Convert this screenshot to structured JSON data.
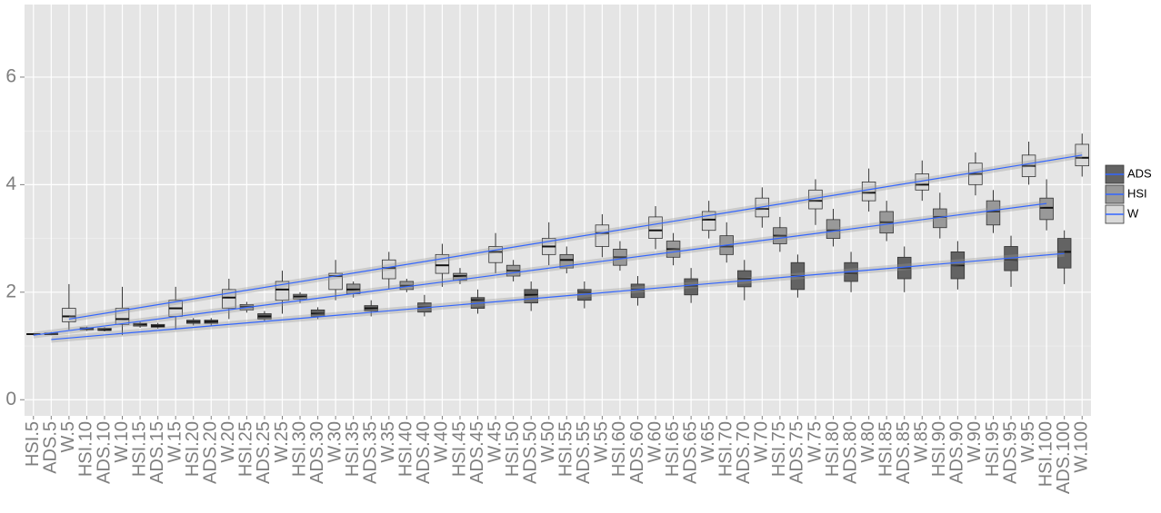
{
  "chart_data": {
    "type": "box",
    "categories": [
      "HSI.5",
      "ADS.5",
      "W.5",
      "HSI.10",
      "ADS.10",
      "W.10",
      "HSI.15",
      "ADS.15",
      "W.15",
      "HSI.20",
      "ADS.20",
      "W.20",
      "HSI.25",
      "ADS.25",
      "W.25",
      "HSI.30",
      "ADS.30",
      "W.30",
      "HSI.35",
      "ADS.35",
      "W.35",
      "HSI.40",
      "ADS.40",
      "W.40",
      "HSI.45",
      "ADS.45",
      "W.45",
      "HSI.50",
      "ADS.50",
      "W.50",
      "HSI.55",
      "ADS.55",
      "W.55",
      "HSI.60",
      "ADS.60",
      "W.60",
      "HSI.65",
      "ADS.65",
      "W.65",
      "HSI.70",
      "ADS.70",
      "W.70",
      "HSI.75",
      "ADS.75",
      "W.75",
      "HSI.80",
      "ADS.80",
      "W.80",
      "HSI.85",
      "ADS.85",
      "W.85",
      "HSI.90",
      "ADS.90",
      "W.90",
      "HSI.95",
      "ADS.95",
      "W.95",
      "HSI.100",
      "ADS.100",
      "W.100"
    ],
    "ylim": [
      -0.3,
      7.35
    ],
    "yticks": [
      0,
      2,
      4,
      6
    ],
    "grid": true,
    "fit_color": "#3366ff",
    "legend_position": "right",
    "series": [
      {
        "name": "ADS",
        "color": "#636363",
        "fit": [
          1.12,
          2.72
        ],
        "fit_se": 0.06,
        "boxes": [
          null,
          [
            1.2,
            1.21,
            1.22,
            1.24,
            1.26
          ],
          null,
          null,
          [
            1.27,
            1.29,
            1.3,
            1.33,
            1.35
          ],
          null,
          null,
          [
            1.32,
            1.35,
            1.37,
            1.4,
            1.43
          ],
          null,
          null,
          [
            1.38,
            1.42,
            1.45,
            1.48,
            1.52
          ],
          null,
          null,
          [
            1.45,
            1.5,
            1.55,
            1.6,
            1.65
          ],
          null,
          null,
          [
            1.5,
            1.55,
            1.6,
            1.67,
            1.72
          ],
          null,
          null,
          [
            1.55,
            1.65,
            1.7,
            1.75,
            1.85
          ],
          null,
          null,
          [
            1.55,
            1.63,
            1.72,
            1.8,
            1.95
          ],
          null,
          null,
          [
            1.6,
            1.7,
            1.85,
            1.9,
            2.05
          ],
          null,
          null,
          [
            1.65,
            1.8,
            1.95,
            2.05,
            2.2
          ],
          null,
          null,
          [
            1.7,
            1.85,
            2.0,
            2.05,
            2.2
          ],
          null,
          null,
          [
            1.75,
            1.9,
            2.05,
            2.15,
            2.3
          ],
          null,
          null,
          [
            1.8,
            1.95,
            2.12,
            2.25,
            2.45
          ],
          null,
          null,
          [
            1.85,
            2.1,
            2.25,
            2.4,
            2.6
          ],
          null,
          null,
          [
            1.9,
            2.05,
            2.3,
            2.55,
            2.7
          ],
          null,
          null,
          [
            2.0,
            2.2,
            2.35,
            2.55,
            2.75
          ],
          null,
          null,
          [
            2.0,
            2.25,
            2.45,
            2.65,
            2.85
          ],
          null,
          null,
          [
            2.05,
            2.25,
            2.5,
            2.75,
            2.95
          ],
          null,
          null,
          [
            2.1,
            2.4,
            2.6,
            2.85,
            3.05
          ],
          null,
          null,
          [
            2.15,
            2.45,
            2.75,
            3.0,
            3.15
          ],
          null
        ]
      },
      {
        "name": "HSI",
        "color": "#999999",
        "fit": [
          1.2,
          3.65
        ],
        "fit_se": 0.06,
        "boxes": [
          [
            1.2,
            1.21,
            1.22,
            1.23,
            1.24
          ],
          null,
          null,
          [
            1.28,
            1.3,
            1.32,
            1.34,
            1.36
          ],
          null,
          null,
          [
            1.34,
            1.37,
            1.4,
            1.42,
            1.45
          ],
          null,
          null,
          [
            1.38,
            1.42,
            1.45,
            1.48,
            1.52
          ],
          null,
          null,
          [
            1.62,
            1.67,
            1.73,
            1.77,
            1.82
          ],
          null,
          null,
          [
            1.8,
            1.87,
            1.92,
            1.96,
            2.0
          ],
          null,
          null,
          [
            1.9,
            1.97,
            2.05,
            2.15,
            2.2
          ],
          null,
          null,
          [
            2.0,
            2.05,
            2.12,
            2.2,
            2.25
          ],
          null,
          null,
          [
            2.15,
            2.22,
            2.3,
            2.35,
            2.45
          ],
          null,
          null,
          [
            2.2,
            2.3,
            2.4,
            2.5,
            2.6
          ],
          null,
          null,
          [
            2.35,
            2.45,
            2.6,
            2.7,
            2.85
          ],
          null,
          null,
          [
            2.4,
            2.5,
            2.65,
            2.8,
            2.95
          ],
          null,
          null,
          [
            2.5,
            2.65,
            2.8,
            2.95,
            3.1
          ],
          null,
          null,
          [
            2.55,
            2.7,
            2.85,
            3.05,
            3.3
          ],
          null,
          null,
          [
            2.75,
            2.9,
            3.05,
            3.2,
            3.4
          ],
          null,
          null,
          [
            2.85,
            3.0,
            3.15,
            3.35,
            3.55
          ],
          null,
          null,
          [
            2.95,
            3.1,
            3.3,
            3.5,
            3.7
          ],
          null,
          null,
          [
            3.0,
            3.2,
            3.4,
            3.55,
            3.85
          ],
          null,
          null,
          [
            3.1,
            3.25,
            3.5,
            3.7,
            3.9
          ],
          null,
          null,
          [
            3.15,
            3.35,
            3.57,
            3.75,
            4.1
          ],
          null,
          null
        ]
      },
      {
        "name": "W",
        "color": "#d9d9d9",
        "fit": [
          1.5,
          4.55
        ],
        "fit_se": 0.06,
        "boxes": [
          null,
          null,
          [
            1.3,
            1.45,
            1.55,
            1.7,
            2.15
          ],
          null,
          null,
          [
            1.2,
            1.4,
            1.5,
            1.7,
            2.1
          ],
          null,
          null,
          [
            1.3,
            1.55,
            1.7,
            1.85,
            2.1
          ],
          null,
          null,
          [
            1.5,
            1.7,
            1.9,
            2.05,
            2.25
          ],
          null,
          null,
          [
            1.6,
            1.85,
            2.05,
            2.2,
            2.4
          ],
          null,
          null,
          [
            1.85,
            2.05,
            2.3,
            2.35,
            2.6
          ],
          null,
          null,
          [
            2.05,
            2.25,
            2.45,
            2.6,
            2.75
          ],
          null,
          null,
          [
            2.1,
            2.35,
            2.5,
            2.7,
            2.9
          ],
          null,
          null,
          [
            2.35,
            2.55,
            2.75,
            2.85,
            3.1
          ],
          null,
          null,
          [
            2.5,
            2.7,
            2.85,
            3.0,
            3.3
          ],
          null,
          null,
          [
            2.65,
            2.85,
            3.1,
            3.25,
            3.45
          ],
          null,
          null,
          [
            2.8,
            3.0,
            3.15,
            3.4,
            3.6
          ],
          null,
          null,
          [
            3.0,
            3.15,
            3.35,
            3.5,
            3.7
          ],
          null,
          null,
          [
            3.2,
            3.4,
            3.55,
            3.75,
            3.95
          ],
          null,
          null,
          [
            3.25,
            3.55,
            3.7,
            3.9,
            4.1
          ],
          null,
          null,
          [
            3.5,
            3.7,
            3.85,
            4.05,
            4.3
          ],
          null,
          null,
          [
            3.7,
            3.9,
            4.0,
            4.2,
            4.45
          ],
          null,
          null,
          [
            3.8,
            4.0,
            4.2,
            4.4,
            4.6
          ],
          null,
          null,
          [
            4.0,
            4.15,
            4.35,
            4.55,
            4.8
          ],
          null,
          null,
          [
            4.15,
            4.35,
            4.5,
            4.75,
            4.95
          ]
        ]
      }
    ]
  }
}
